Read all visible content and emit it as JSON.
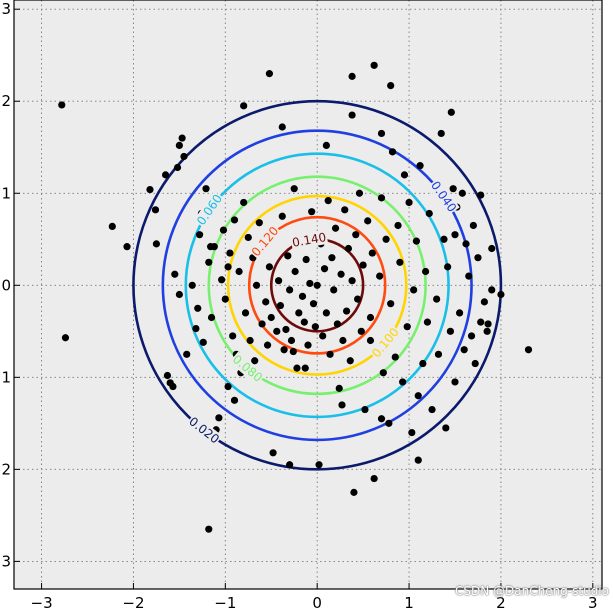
{
  "chart_data": {
    "type": "scatter",
    "title": "",
    "xlabel": "",
    "ylabel": "",
    "xlim": [
      -3.3,
      3.1
    ],
    "ylim": [
      -3.3,
      3.1
    ],
    "xticks": [
      -3,
      -2,
      -1,
      0,
      1,
      2,
      3
    ],
    "yticks": [
      -3,
      -2,
      -1,
      0,
      1,
      2,
      3
    ],
    "xtick_labels": [
      "−3",
      "−2",
      "−1",
      "0",
      "1",
      "2",
      "3"
    ],
    "ytick_labels": [
      "−3",
      "−2",
      "−1",
      "0",
      "1",
      "2",
      "3"
    ],
    "grid": true,
    "background_color": "#ececec",
    "marker_color": "#000000",
    "contours": [
      {
        "level": 0.02,
        "label": "0.020",
        "color": "#0b1a6b",
        "radius_x": 2.0,
        "radius_y": 2.0
      },
      {
        "level": 0.04,
        "label": "0.040",
        "color": "#1f3fe0",
        "radius_x": 1.68,
        "radius_y": 1.68
      },
      {
        "level": 0.06,
        "label": "0.060",
        "color": "#19bfe8",
        "radius_x": 1.43,
        "radius_y": 1.43
      },
      {
        "level": 0.08,
        "label": "0.080",
        "color": "#77f06e",
        "radius_x": 1.18,
        "radius_y": 1.18
      },
      {
        "level": 0.1,
        "label": "0.100",
        "color": "#ffd400",
        "radius_x": 0.97,
        "radius_y": 0.97
      },
      {
        "level": 0.12,
        "label": "0.120",
        "color": "#ff4a10",
        "radius_x": 0.74,
        "radius_y": 0.74
      },
      {
        "level": 0.14,
        "label": "0.140",
        "color": "#6e0a0a",
        "radius_x": 0.5,
        "radius_y": 0.5
      }
    ],
    "points": [
      [
        -2.78,
        1.96
      ],
      [
        -2.74,
        -0.57
      ],
      [
        -2.23,
        0.64
      ],
      [
        -2.07,
        0.42
      ],
      [
        -1.82,
        1.04
      ],
      [
        -1.76,
        0.82
      ],
      [
        -1.75,
        0.45
      ],
      [
        -1.63,
        -0.98
      ],
      [
        -1.6,
        -1.06
      ],
      [
        -1.57,
        -1.1
      ],
      [
        -1.55,
        0.12
      ],
      [
        -1.52,
        1.28
      ],
      [
        -1.5,
        1.52
      ],
      [
        -1.47,
        1.6
      ],
      [
        -1.45,
        1.4
      ],
      [
        -1.42,
        -0.75
      ],
      [
        -1.36,
        0.0
      ],
      [
        -1.32,
        -0.47
      ],
      [
        -1.3,
        -0.25
      ],
      [
        -1.28,
        0.55
      ],
      [
        -1.26,
        0.78
      ],
      [
        -1.24,
        -0.62
      ],
      [
        -1.21,
        1.05
      ],
      [
        -1.18,
        0.25
      ],
      [
        -1.15,
        -0.35
      ],
      [
        -1.12,
        0.42
      ],
      [
        -1.1,
        -1.57
      ],
      [
        -1.07,
        -1.44
      ],
      [
        -1.04,
        0.06
      ],
      [
        -1.02,
        0.6
      ],
      [
        -1.0,
        -0.15
      ],
      [
        -0.97,
        -1.1
      ],
      [
        -0.95,
        0.35
      ],
      [
        -0.92,
        -0.55
      ],
      [
        -0.9,
        0.71
      ],
      [
        -0.88,
        -0.75
      ],
      [
        -0.85,
        0.15
      ],
      [
        -0.83,
        -0.95
      ],
      [
        -0.8,
        0.9
      ],
      [
        -0.78,
        -0.3
      ],
      [
        -0.75,
        0.52
      ],
      [
        -0.73,
        -0.6
      ],
      [
        -0.7,
        0.3
      ],
      [
        -0.68,
        -0.82
      ],
      [
        -0.66,
        0.0
      ],
      [
        -0.63,
        0.68
      ],
      [
        -0.6,
        -0.42
      ],
      [
        -0.58,
        0.42
      ],
      [
        -0.56,
        -0.18
      ],
      [
        -0.54,
        -0.65
      ],
      [
        -0.52,
        0.2
      ],
      [
        -0.5,
        -0.35
      ],
      [
        -0.48,
        -1.82
      ],
      [
        -0.46,
        0.55
      ],
      [
        -0.44,
        -0.5
      ],
      [
        -0.42,
        0.05
      ],
      [
        -0.4,
        -0.22
      ],
      [
        -0.38,
        0.75
      ],
      [
        -0.36,
        -0.7
      ],
      [
        -0.34,
        -0.48
      ],
      [
        -0.32,
        0.32
      ],
      [
        -0.3,
        -0.05
      ],
      [
        -0.28,
        -0.6
      ],
      [
        -0.26,
        -0.72
      ],
      [
        -0.24,
        0.15
      ],
      [
        -0.22,
        -0.9
      ],
      [
        -0.2,
        -0.3
      ],
      [
        -0.18,
        0.5
      ],
      [
        -0.16,
        -0.12
      ],
      [
        -0.14,
        -0.4
      ],
      [
        -0.12,
        0.28
      ],
      [
        -0.1,
        -0.65
      ],
      [
        -0.08,
        0.02
      ],
      [
        -0.06,
        0.8
      ],
      [
        -0.04,
        -0.2
      ],
      [
        -0.02,
        -0.45
      ],
      [
        0.0,
        0.0
      ],
      [
        0.02,
        -1.95
      ],
      [
        0.04,
        0.45
      ],
      [
        0.06,
        -0.55
      ],
      [
        0.08,
        0.18
      ],
      [
        0.1,
        -0.3
      ],
      [
        0.12,
        0.92
      ],
      [
        0.14,
        -0.75
      ],
      [
        0.16,
        0.3
      ],
      [
        0.18,
        -0.05
      ],
      [
        0.2,
        0.62
      ],
      [
        0.22,
        -0.42
      ],
      [
        0.24,
        -1.12
      ],
      [
        0.26,
        0.12
      ],
      [
        0.28,
        -0.6
      ],
      [
        0.3,
        0.82
      ],
      [
        0.32,
        -0.28
      ],
      [
        0.34,
        0.4
      ],
      [
        0.36,
        -0.82
      ],
      [
        0.38,
        0.05
      ],
      [
        0.4,
        -2.25
      ],
      [
        0.42,
        0.55
      ],
      [
        0.44,
        -0.15
      ],
      [
        0.46,
        1.0
      ],
      [
        0.48,
        -0.5
      ],
      [
        0.5,
        0.22
      ],
      [
        0.52,
        -1.35
      ],
      [
        0.55,
        0.7
      ],
      [
        0.58,
        -0.35
      ],
      [
        0.6,
        0.35
      ],
      [
        0.62,
        -2.1
      ],
      [
        0.65,
        -0.68
      ],
      [
        0.68,
        0.1
      ],
      [
        0.7,
        0.95
      ],
      [
        0.72,
        -0.95
      ],
      [
        0.75,
        0.5
      ],
      [
        0.78,
        -1.5
      ],
      [
        0.8,
        -0.2
      ],
      [
        0.82,
        1.45
      ],
      [
        0.85,
        -0.78
      ],
      [
        0.88,
        0.65
      ],
      [
        0.9,
        0.25
      ],
      [
        0.93,
        -1.05
      ],
      [
        0.95,
        1.2
      ],
      [
        0.98,
        -0.45
      ],
      [
        1.0,
        0.9
      ],
      [
        1.03,
        -1.6
      ],
      [
        1.05,
        -0.05
      ],
      [
        1.08,
        0.48
      ],
      [
        1.1,
        -1.2
      ],
      [
        1.12,
        1.3
      ],
      [
        1.15,
        -0.85
      ],
      [
        1.18,
        0.15
      ],
      [
        1.2,
        -0.4
      ],
      [
        1.22,
        0.78
      ],
      [
        1.25,
        -1.35
      ],
      [
        1.28,
        1.05
      ],
      [
        1.3,
        -0.15
      ],
      [
        1.32,
        -0.75
      ],
      [
        1.35,
        1.65
      ],
      [
        1.38,
        0.5
      ],
      [
        1.4,
        -1.55
      ],
      [
        1.42,
        0.2
      ],
      [
        1.45,
        -0.5
      ],
      [
        1.48,
        1.05
      ],
      [
        1.5,
        -1.05
      ],
      [
        1.52,
        0.85
      ],
      [
        1.55,
        -0.3
      ],
      [
        1.58,
        1.0
      ],
      [
        1.6,
        -0.7
      ],
      [
        1.62,
        0.45
      ],
      [
        1.65,
        0.1
      ],
      [
        1.68,
        -0.55
      ],
      [
        1.7,
        0.65
      ],
      [
        1.72,
        -0.85
      ],
      [
        1.75,
        0.3
      ],
      [
        1.78,
        0.98
      ],
      [
        1.82,
        -0.18
      ],
      [
        1.86,
        -0.42
      ],
      [
        1.9,
        0.4
      ],
      [
        2.0,
        -0.1
      ],
      [
        2.3,
        -0.7
      ],
      [
        -0.52,
        2.3
      ],
      [
        0.38,
        2.27
      ],
      [
        0.62,
        2.39
      ],
      [
        0.8,
        2.17
      ],
      [
        -1.16,
        0.42
      ],
      [
        -0.38,
        1.72
      ],
      [
        0.38,
        1.85
      ],
      [
        1.46,
        1.88
      ],
      [
        1.85,
        -0.5
      ],
      [
        -0.3,
        -1.95
      ],
      [
        -1.18,
        -2.65
      ],
      [
        -0.13,
        -0.9
      ],
      [
        1.5,
        0.55
      ],
      [
        -0.97,
        0.2
      ],
      [
        0.58,
        -0.6
      ],
      [
        0.27,
        -1.3
      ],
      [
        -0.7,
        -0.97
      ],
      [
        -0.25,
        1.05
      ],
      [
        1.1,
        -1.9
      ],
      [
        0.7,
        -1.45
      ],
      [
        -1.65,
        1.2
      ],
      [
        1.9,
        -0.05
      ],
      [
        1.78,
        -0.4
      ],
      [
        -1.5,
        -0.1
      ],
      [
        -0.9,
        -1.25
      ],
      [
        0.1,
        1.52
      ],
      [
        0.7,
        1.65
      ],
      [
        -0.8,
        1.95
      ]
    ]
  },
  "watermark": "CSDN @DanCheng-studio"
}
